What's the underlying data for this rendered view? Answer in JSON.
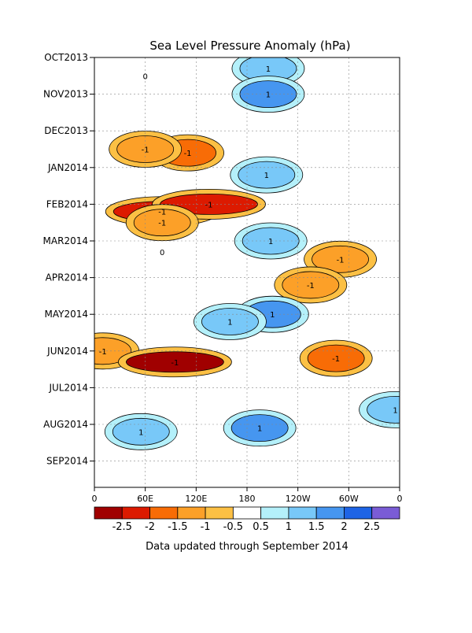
{
  "chart_data": {
    "type": "heatmap",
    "title": "Sea Level Pressure Anomaly (hPa)",
    "xlabel": "",
    "ylabel": "",
    "x_ticks": [
      "0",
      "60E",
      "120E",
      "180",
      "120W",
      "60W",
      "0"
    ],
    "y_ticks": [
      "OCT2013",
      "NOV2013",
      "DEC2013",
      "JAN2014",
      "FEB2014",
      "MAR2014",
      "APR2014",
      "MAY2014",
      "JUN2014",
      "JUL2014",
      "AUG2014",
      "SEP2014"
    ],
    "xlim": [
      0,
      360
    ],
    "grid": true,
    "colorbar": {
      "labels": [
        "-2.5",
        "-2",
        "-1.5",
        "-1",
        "-0.5",
        "0.5",
        "1",
        "1.5",
        "2",
        "2.5"
      ],
      "colors": [
        "#a00000",
        "#dc1a00",
        "#f86c06",
        "#fca028",
        "#fcc044",
        "#ffffff",
        "#b4f0fa",
        "#78c8f8",
        "#4696f0",
        "#1e64e6",
        "#7a5cd6"
      ]
    },
    "features": [
      {
        "label": "-1",
        "t": 2.6,
        "lon": 110,
        "level": -1.5
      },
      {
        "label": "-1",
        "t": 2.5,
        "lon": 60,
        "level": -1
      },
      {
        "label": "-1",
        "t": 4.2,
        "lon": 80,
        "level": -2
      },
      {
        "label": "-1",
        "t": 4.0,
        "lon": 135,
        "level": -2
      },
      {
        "label": "-1",
        "t": 4.5,
        "lon": 80,
        "level": -1
      },
      {
        "label": "-1",
        "t": 8.0,
        "lon": 10,
        "level": -1
      },
      {
        "label": "-1",
        "t": 8.3,
        "lon": 95,
        "level": -2.5
      },
      {
        "label": "-1",
        "t": 8.2,
        "lon": 285,
        "level": -1.5
      },
      {
        "label": "-1",
        "t": 5.5,
        "lon": 290,
        "level": -1
      },
      {
        "label": "-1",
        "t": 6.2,
        "lon": 255,
        "level": -1
      },
      {
        "label": "1",
        "t": 0.3,
        "lon": 205,
        "level": 1
      },
      {
        "label": "1",
        "t": 1.0,
        "lon": 205,
        "level": 1.5
      },
      {
        "label": "1",
        "t": 3.2,
        "lon": 203,
        "level": 1
      },
      {
        "label": "1",
        "t": 5.0,
        "lon": 208,
        "level": 1
      },
      {
        "label": "1",
        "t": 7.0,
        "lon": 210,
        "level": 1.5
      },
      {
        "label": "1",
        "t": 7.2,
        "lon": 160,
        "level": 1
      },
      {
        "label": "1",
        "t": 10.1,
        "lon": 195,
        "level": 1.5
      },
      {
        "label": "1",
        "t": 10.2,
        "lon": 55,
        "level": 1
      },
      {
        "label": "1",
        "t": 9.6,
        "lon": 355,
        "level": 1
      },
      {
        "label": "0",
        "t": 0.5,
        "lon": 60,
        "level": 0
      },
      {
        "label": "0",
        "t": 5.3,
        "lon": 80,
        "level": 0
      }
    ]
  },
  "footer": "Data updated through September 2014"
}
